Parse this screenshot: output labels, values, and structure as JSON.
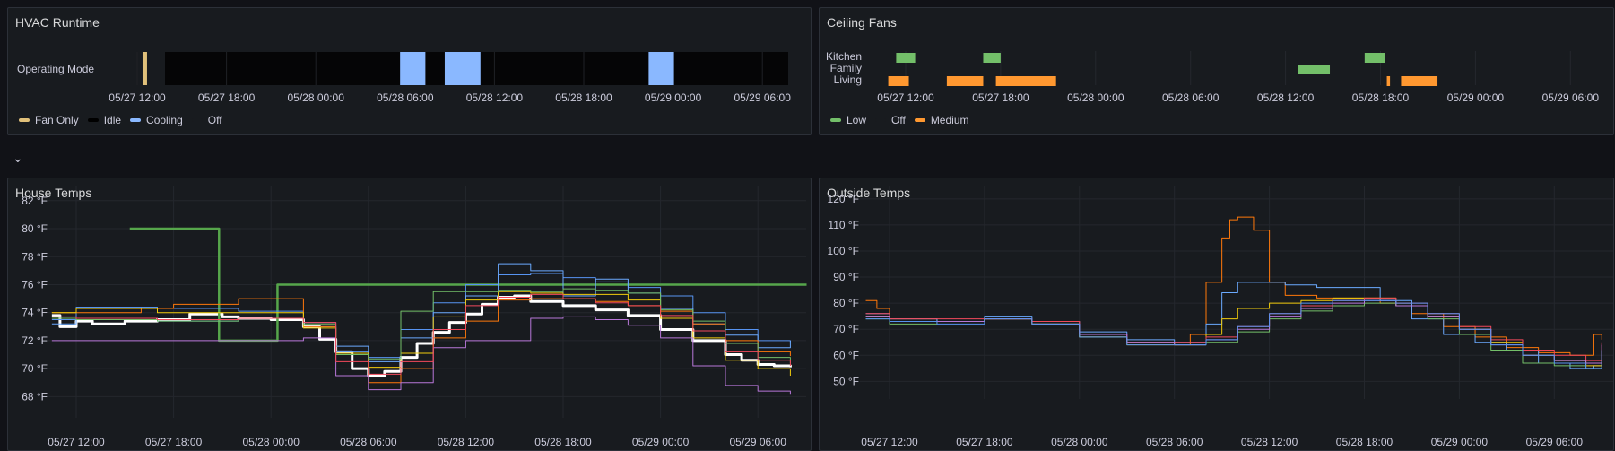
{
  "panels": {
    "hvac": {
      "title": "HVAC Runtime",
      "row_label": "Operating Mode",
      "x_ticks": [
        "05/27 12:00",
        "05/27 18:00",
        "05/28 00:00",
        "05/28 06:00",
        "05/28 12:00",
        "05/28 18:00",
        "05/29 00:00",
        "05/29 06:00"
      ],
      "segments": [
        {
          "start": 0.3,
          "end": 0.6,
          "state": "Fan Only"
        },
        {
          "start": 17.6,
          "end": 19.3,
          "state": "Cooling"
        },
        {
          "start": 20.6,
          "end": 23.0,
          "state": "Cooling"
        },
        {
          "start": 34.3,
          "end": 36.0,
          "state": "Cooling"
        }
      ],
      "legend": [
        {
          "label": "Fan Only",
          "color": "#e0c07a"
        },
        {
          "label": "Idle",
          "color": "#000000"
        },
        {
          "label": "Cooling",
          "color": "#8ab8ff"
        },
        {
          "label": "Off",
          "color": "#181b1f"
        }
      ]
    },
    "fans": {
      "title": "Ceiling Fans",
      "rows": [
        "Kitchen",
        "Family",
        "Living"
      ],
      "x_ticks": [
        "05/27 12:00",
        "05/27 18:00",
        "05/28 00:00",
        "05/28 06:00",
        "05/28 12:00",
        "05/28 18:00",
        "05/29 00:00",
        "05/29 06:00"
      ],
      "segments": [
        {
          "row": "Kitchen",
          "start": -0.6,
          "end": 0.6,
          "state": "Low"
        },
        {
          "row": "Kitchen",
          "start": 4.9,
          "end": 6.0,
          "state": "Low"
        },
        {
          "row": "Kitchen",
          "start": 29.0,
          "end": 30.3,
          "state": "Low"
        },
        {
          "row": "Family",
          "start": 24.8,
          "end": 26.8,
          "state": "Low"
        },
        {
          "row": "Living",
          "start": -1.1,
          "end": 0.2,
          "state": "Medium"
        },
        {
          "row": "Living",
          "start": 2.6,
          "end": 4.9,
          "state": "Medium"
        },
        {
          "row": "Living",
          "start": 5.7,
          "end": 9.5,
          "state": "Medium"
        },
        {
          "row": "Living",
          "start": 30.4,
          "end": 30.6,
          "state": "Medium"
        },
        {
          "row": "Living",
          "start": 31.3,
          "end": 33.6,
          "state": "Medium"
        }
      ],
      "legend": [
        {
          "label": "Low",
          "color": "#73bf69"
        },
        {
          "label": "Off",
          "color": "#181b1f"
        },
        {
          "label": "Medium",
          "color": "#ff9830"
        }
      ]
    },
    "house": {
      "title": "House Temps",
      "x_ticks": [
        "05/27 12:00",
        "05/27 18:00",
        "05/28 00:00",
        "05/28 06:00",
        "05/28 12:00",
        "05/28 18:00",
        "05/29 00:00",
        "05/29 06:00"
      ],
      "y_ticks": [
        "82 °F",
        "80 °F",
        "78 °F",
        "76 °F",
        "74 °F",
        "72 °F",
        "70 °F",
        "68 °F"
      ]
    },
    "outside": {
      "title": "Outside Temps",
      "x_ticks": [
        "05/27 12:00",
        "05/27 18:00",
        "05/28 00:00",
        "05/28 06:00",
        "05/28 12:00",
        "05/28 18:00",
        "05/29 00:00",
        "05/29 06:00"
      ],
      "y_ticks": [
        "120 °F",
        "110 °F",
        "100 °F",
        "90 °F",
        "80 °F",
        "70 °F",
        "60 °F",
        "50 °F"
      ]
    }
  },
  "collapse_icon": "chevron-down-icon",
  "chart_data": [
    {
      "type": "line",
      "title": "House Temps",
      "x_unit": "hours since 05/27 12:00",
      "ylim": [
        67,
        82.5
      ],
      "series": [
        {
          "color": "#ffffff",
          "width": 3,
          "x": [
            -1.5,
            -1,
            0,
            1,
            3,
            5,
            7,
            9,
            10,
            12,
            14,
            15,
            16,
            17,
            18,
            19,
            20,
            21,
            22,
            23,
            24,
            25,
            26,
            27,
            28,
            30,
            32,
            34,
            36,
            38,
            40,
            41,
            42,
            43,
            44
          ],
          "y": [
            73.8,
            73.0,
            73.4,
            73.2,
            73.4,
            73.5,
            73.9,
            73.7,
            73.6,
            73.5,
            73.0,
            72.1,
            71.2,
            70.0,
            69.5,
            69.8,
            70.8,
            71.8,
            72.6,
            73.3,
            73.9,
            74.6,
            75.1,
            75.2,
            74.8,
            74.5,
            74.2,
            73.8,
            72.8,
            72.0,
            71.0,
            70.6,
            70.3,
            70.2,
            70.1
          ]
        },
        {
          "color": "#56a64b",
          "width": 2.5,
          "x": [
            3.3,
            8.8,
            8.8,
            12.4,
            12.4,
            45
          ],
          "y": [
            80,
            80,
            72,
            72,
            76,
            76
          ]
        },
        {
          "color": "#5794f2",
          "width": 1,
          "x": [
            -1.5,
            0,
            5,
            10,
            14,
            16,
            18,
            20,
            22,
            24,
            26,
            28,
            30,
            32,
            34,
            36,
            38,
            40,
            42,
            44
          ],
          "y": [
            73.5,
            74.4,
            74.3,
            74.1,
            73.3,
            71.2,
            70.8,
            72.8,
            74.7,
            76.0,
            76.7,
            76.8,
            76.5,
            76.2,
            75.8,
            75.2,
            74.0,
            72.8,
            72.0,
            71.9
          ]
        },
        {
          "color": "#6baaff",
          "width": 1,
          "x": [
            -1.5,
            0,
            5,
            10,
            14,
            16,
            18,
            20,
            22,
            24,
            26,
            28,
            30,
            32,
            34,
            36,
            38,
            40,
            42,
            44
          ],
          "y": [
            73.2,
            73.5,
            73.4,
            73.6,
            73.0,
            71.6,
            70.5,
            72.2,
            74.0,
            75.2,
            77.5,
            77.0,
            75.2,
            76.4,
            75.4,
            74.3,
            73.2,
            72.4,
            71.5,
            72.0
          ]
        },
        {
          "color": "#ff780a",
          "width": 1,
          "x": [
            -1.5,
            0,
            4,
            6,
            10,
            12,
            14,
            16,
            18,
            20,
            22,
            24,
            26,
            28,
            30,
            32,
            34,
            36,
            38,
            40,
            42,
            44
          ],
          "y": [
            74.0,
            74.0,
            74.3,
            74.6,
            75.0,
            75.0,
            73.0,
            71.0,
            69.0,
            70.0,
            72.2,
            73.4,
            74.9,
            75.0,
            75.0,
            74.8,
            74.5,
            74.1,
            73.2,
            72.0,
            71.2,
            70.9
          ]
        },
        {
          "color": "#f2cc0c",
          "width": 1,
          "x": [
            -1.5,
            0,
            5,
            10,
            14,
            16,
            18,
            20,
            22,
            24,
            26,
            28,
            30,
            32,
            34,
            36,
            38,
            40,
            42,
            44
          ],
          "y": [
            74.0,
            74.3,
            74.0,
            74.0,
            72.9,
            71.1,
            70.1,
            71.1,
            73.7,
            74.9,
            75.5,
            75.4,
            75.3,
            75.3,
            74.9,
            73.6,
            72.2,
            70.6,
            70.0,
            69.5
          ]
        },
        {
          "color": "#73bf69",
          "width": 1,
          "x": [
            -1.5,
            0,
            5,
            10,
            14,
            16,
            18,
            20,
            22,
            24,
            26,
            28,
            30,
            32,
            34,
            36,
            38,
            40,
            42,
            44
          ],
          "y": [
            73.6,
            73.5,
            73.4,
            73.6,
            73.2,
            71.0,
            70.7,
            74.1,
            75.5,
            75.5,
            75.6,
            75.5,
            75.7,
            75.6,
            75.4,
            74.2,
            73.4,
            71.8,
            70.8,
            70.4
          ]
        },
        {
          "color": "#b877d9",
          "width": 1,
          "x": [
            -1.5,
            0,
            5,
            10,
            14,
            16,
            18,
            20,
            22,
            24,
            26,
            28,
            30,
            32,
            34,
            36,
            38,
            40,
            42,
            44
          ],
          "y": [
            72.0,
            72.0,
            72.0,
            72.0,
            72.2,
            69.5,
            68.5,
            69.0,
            71.5,
            72.0,
            72.0,
            73.6,
            73.7,
            73.5,
            73.1,
            72.2,
            70.2,
            68.8,
            68.4,
            68.2
          ]
        },
        {
          "color": "#f2495c",
          "width": 1,
          "x": [
            -1.5,
            0,
            5,
            10,
            14,
            16,
            18,
            20,
            22,
            24,
            26,
            28,
            30,
            32,
            34,
            36,
            38,
            40,
            42,
            44
          ],
          "y": [
            73.7,
            73.6,
            73.5,
            73.6,
            73.3,
            70.5,
            69.6,
            70.5,
            72.8,
            74.5,
            75.1,
            75.3,
            75.0,
            74.7,
            74.5,
            73.8,
            72.7,
            71.2,
            70.6,
            70.2
          ]
        }
      ]
    },
    {
      "type": "line",
      "title": "Outside Temps",
      "x_unit": "hours since 05/27 12:00",
      "ylim": [
        46,
        122
      ],
      "series": [
        {
          "color": "#ff780a",
          "x": [
            -1.5,
            -0.8,
            0,
            3,
            6,
            9,
            12,
            15,
            18,
            19,
            20,
            21,
            21.5,
            22,
            23,
            24,
            25,
            27,
            29,
            31,
            33,
            35,
            37,
            39,
            41,
            43,
            44.5,
            45
          ],
          "y": [
            81,
            78,
            74,
            73,
            74,
            72,
            67,
            65,
            64,
            68,
            88,
            105,
            112,
            113,
            108,
            88,
            83,
            82,
            82,
            80,
            76,
            71,
            67,
            63,
            61,
            60,
            68,
            66
          ]
        },
        {
          "color": "#6baaff",
          "x": [
            -1.5,
            0,
            3,
            6,
            9,
            12,
            15,
            18,
            19,
            20,
            21,
            22,
            23,
            24,
            25,
            27,
            29,
            31,
            33,
            35,
            37,
            39,
            41,
            43,
            44.5,
            45
          ],
          "y": [
            76,
            74,
            73,
            75,
            73,
            69,
            66,
            65,
            65,
            72,
            84,
            88,
            88,
            88,
            87,
            86,
            86,
            81,
            74,
            68,
            65,
            62,
            57,
            55,
            56,
            62
          ]
        },
        {
          "color": "#f2cc0c",
          "x": [
            -1.5,
            0,
            3,
            6,
            9,
            12,
            15,
            18,
            20,
            21,
            22,
            24,
            26,
            28,
            30,
            32,
            34,
            36,
            38,
            40,
            42,
            44,
            45
          ],
          "y": [
            75,
            73,
            73,
            74,
            72,
            67,
            64,
            64,
            68,
            74,
            78,
            80,
            81,
            82,
            82,
            79,
            75,
            70,
            65,
            60,
            58,
            56,
            62
          ]
        },
        {
          "color": "#73bf69",
          "x": [
            -1.5,
            0,
            3,
            6,
            9,
            12,
            15,
            18,
            20,
            22,
            24,
            26,
            28,
            30,
            32,
            34,
            36,
            38,
            40,
            42,
            44,
            45
          ],
          "y": [
            74,
            72,
            73,
            74,
            72,
            67,
            65,
            64,
            65,
            69,
            74,
            77,
            79,
            80,
            79,
            74,
            68,
            62,
            57,
            56,
            55,
            60
          ]
        },
        {
          "color": "#f2495c",
          "x": [
            -1.5,
            0,
            3,
            6,
            9,
            12,
            15,
            18,
            20,
            22,
            24,
            26,
            28,
            30,
            32,
            34,
            36,
            38,
            40,
            42,
            44,
            45
          ],
          "y": [
            76,
            74,
            74,
            74,
            73,
            68,
            65,
            65,
            67,
            71,
            76,
            79,
            81,
            82,
            80,
            76,
            71,
            66,
            62,
            60,
            58,
            65
          ]
        },
        {
          "color": "#b877d9",
          "x": [
            -1.5,
            0,
            3,
            6,
            9,
            12,
            15,
            18,
            20,
            22,
            24,
            26,
            28,
            30,
            32,
            34,
            36,
            38,
            40,
            42,
            44,
            45
          ],
          "y": [
            75,
            73,
            73,
            74,
            72,
            68,
            65,
            64,
            66,
            70,
            75,
            78,
            80,
            81,
            79,
            75,
            70,
            64,
            60,
            58,
            57,
            64
          ]
        },
        {
          "color": "#5794f2",
          "x": [
            -1.5,
            0,
            3,
            6,
            9,
            12,
            15,
            18,
            20,
            22,
            24,
            26,
            28,
            30,
            32,
            34,
            36,
            38,
            40,
            42,
            44,
            45
          ],
          "y": [
            74,
            73,
            72,
            74,
            72,
            67,
            64,
            64,
            66,
            71,
            76,
            80,
            81,
            81,
            80,
            76,
            70,
            64,
            60,
            57,
            55,
            62
          ]
        }
      ]
    }
  ]
}
